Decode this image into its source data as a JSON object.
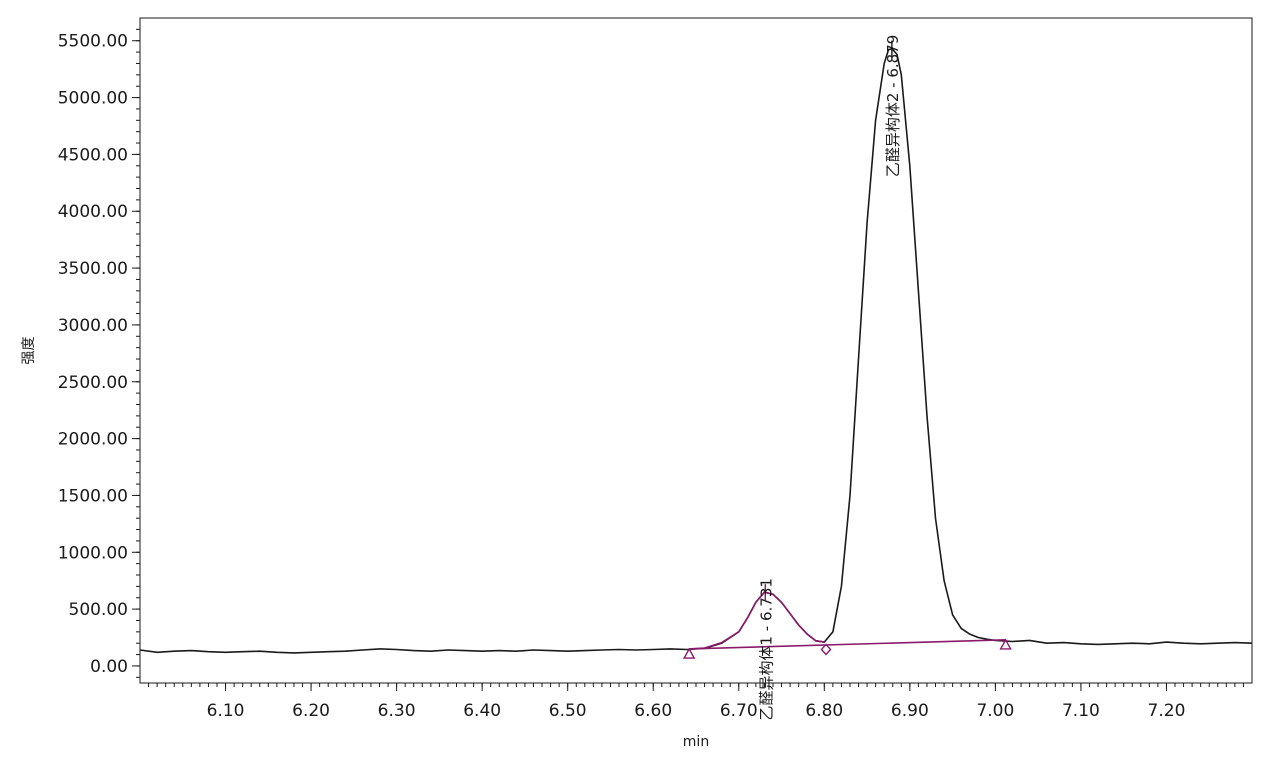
{
  "chart_data": {
    "type": "line",
    "xlabel": "min",
    "ylabel": "强度",
    "xlim": [
      6.0,
      7.3
    ],
    "ylim": [
      -150,
      5700
    ],
    "xticks": [
      "6.10",
      "6.20",
      "6.30",
      "6.40",
      "6.50",
      "6.60",
      "6.70",
      "6.80",
      "6.90",
      "7.00",
      "7.10",
      "7.20"
    ],
    "yticks": [
      "0.00",
      "500.00",
      "1000.00",
      "1500.00",
      "2000.00",
      "2500.00",
      "3000.00",
      "3500.00",
      "4000.00",
      "4500.00",
      "5000.00",
      "5500.00"
    ],
    "grid": false,
    "legend": "none",
    "colors": {
      "signal": "#1a1a1a",
      "integration": "#8b1a6b",
      "axis": "#1a1a1a"
    },
    "series": [
      {
        "role": "signal",
        "x": [
          6.0,
          6.02,
          6.04,
          6.06,
          6.08,
          6.1,
          6.12,
          6.14,
          6.16,
          6.18,
          6.2,
          6.22,
          6.24,
          6.26,
          6.28,
          6.3,
          6.32,
          6.34,
          6.36,
          6.38,
          6.4,
          6.42,
          6.44,
          6.46,
          6.48,
          6.5,
          6.52,
          6.54,
          6.56,
          6.58,
          6.6,
          6.62,
          6.64,
          6.66,
          6.68,
          6.7,
          6.71,
          6.72,
          6.73,
          6.74,
          6.75,
          6.76,
          6.77,
          6.78,
          6.79,
          6.8,
          6.81,
          6.82,
          6.83,
          6.84,
          6.85,
          6.86,
          6.87,
          6.875,
          6.879,
          6.885,
          6.89,
          6.9,
          6.91,
          6.92,
          6.93,
          6.94,
          6.95,
          6.96,
          6.97,
          6.98,
          6.99,
          7.0,
          7.02,
          7.04,
          7.06,
          7.08,
          7.1,
          7.12,
          7.14,
          7.16,
          7.18,
          7.2,
          7.22,
          7.24,
          7.26,
          7.28,
          7.3
        ],
        "y": [
          140,
          120,
          130,
          135,
          125,
          120,
          125,
          130,
          120,
          115,
          120,
          125,
          130,
          140,
          150,
          145,
          135,
          130,
          140,
          135,
          130,
          135,
          130,
          140,
          135,
          130,
          135,
          140,
          145,
          140,
          145,
          150,
          145,
          155,
          200,
          300,
          420,
          560,
          650,
          630,
          560,
          460,
          360,
          280,
          220,
          210,
          300,
          700,
          1500,
          2700,
          3900,
          4800,
          5300,
          5420,
          5430,
          5380,
          5200,
          4400,
          3300,
          2200,
          1300,
          750,
          450,
          330,
          280,
          250,
          235,
          225,
          215,
          225,
          200,
          205,
          195,
          190,
          195,
          200,
          195,
          210,
          200,
          195,
          200,
          205,
          200
        ]
      },
      {
        "role": "integration",
        "x": [
          6.642,
          6.66,
          6.68,
          6.7,
          6.71,
          6.72,
          6.73,
          6.74,
          6.75,
          6.76,
          6.77,
          6.78,
          6.79,
          6.8
        ],
        "y": [
          150,
          158,
          205,
          300,
          420,
          560,
          650,
          630,
          560,
          460,
          360,
          280,
          222,
          210
        ]
      }
    ],
    "baseline": {
      "x": [
        6.642,
        7.012
      ],
      "y": [
        150,
        230
      ]
    },
    "markers": [
      {
        "shape": "triangle",
        "x": 6.642,
        "y": 105
      },
      {
        "shape": "diamond",
        "x": 6.802,
        "y": 145
      },
      {
        "shape": "triangle",
        "x": 7.012,
        "y": 185
      }
    ],
    "peaks": [
      {
        "x": 6.731,
        "y": 650,
        "label": "乙醛异构体1 - 6.731",
        "color": "#8b1a6b"
      },
      {
        "x": 6.879,
        "y": 5430,
        "label": "乙醛异构体2 - 6.879",
        "color": "#1a1a1a"
      }
    ]
  }
}
